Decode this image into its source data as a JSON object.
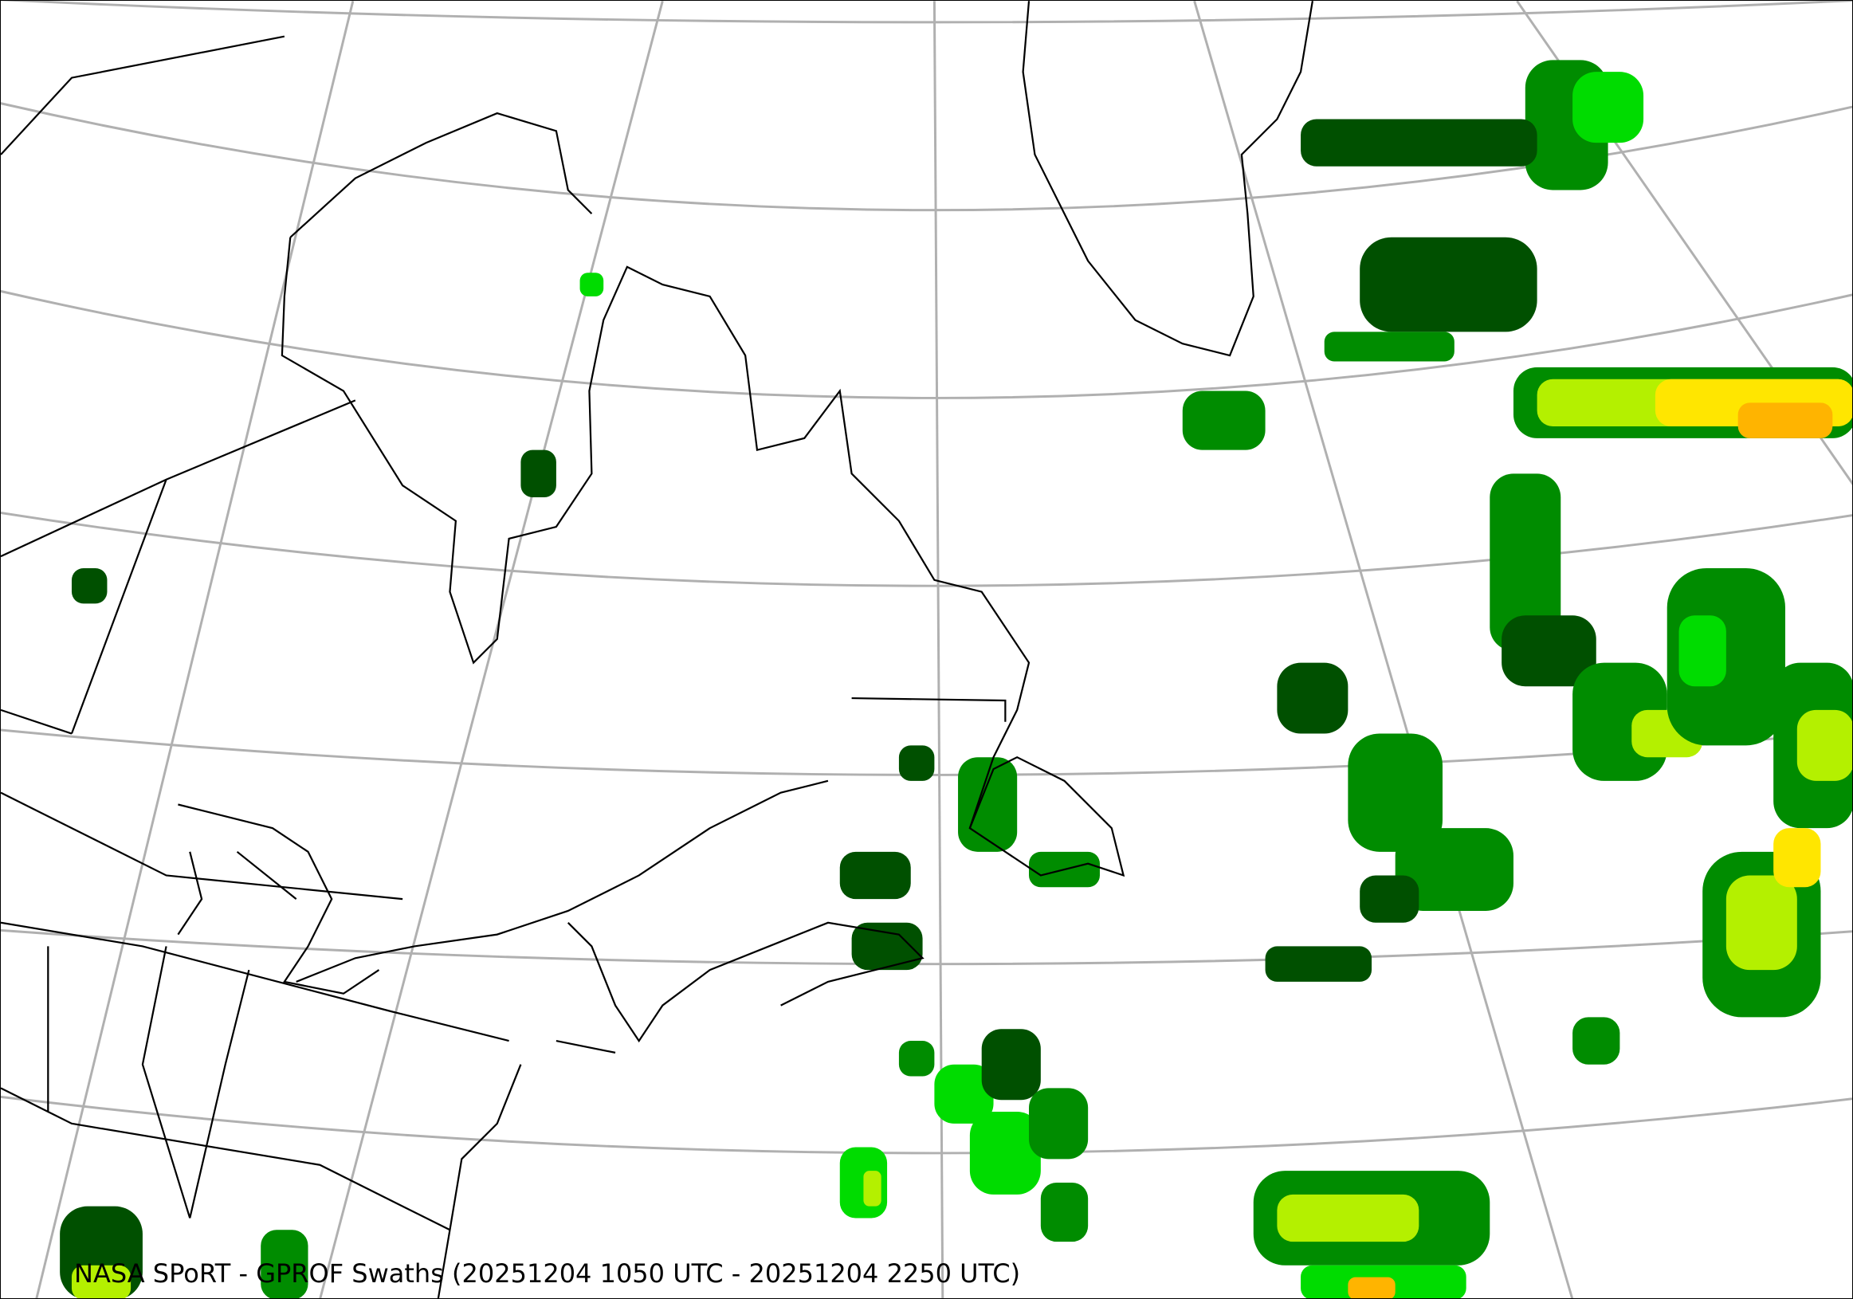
{
  "title": "NASA SPoRT - GPROF Swaths (20251204 1050 UTC - 20251204 2250 UTC)",
  "colors": {
    "graticule": "#b0b0b0",
    "coastline": "#000000",
    "precip_light": "#005000",
    "precip_mid": "#008c00",
    "precip_green": "#00dc00",
    "precip_lime": "#b4f000",
    "precip_yellow": "#ffe600",
    "precip_orange": "#ffb400"
  }
}
